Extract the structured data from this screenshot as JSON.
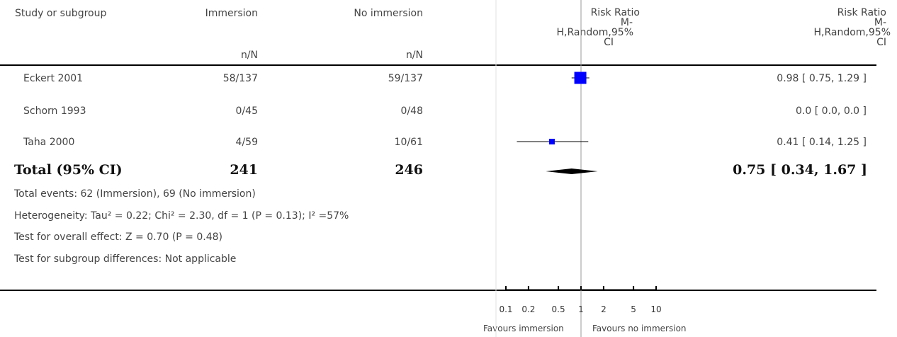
{
  "chart_data": {
    "type": "forest",
    "columns": {
      "study": "Study or subgroup",
      "group1": "Immersion",
      "group2": "No immersion",
      "group1_sub": "n/N",
      "group2_sub": "n/N",
      "rr_plot": [
        "Risk Ratio",
        "M-",
        "H,Random,95%",
        "CI"
      ],
      "rr_text": [
        "Risk Ratio",
        "M-",
        "H,Random,95%",
        "CI"
      ]
    },
    "studies": [
      {
        "name": "Eckert 2001",
        "g1": "58/137",
        "g2": "59/137",
        "rr": 0.98,
        "lo": 0.75,
        "hi": 1.29,
        "ci_text": "0.98 [ 0.75, 1.29 ]"
      },
      {
        "name": "Schorn 1993",
        "g1": "0/45",
        "g2": "0/48",
        "rr": null,
        "lo": null,
        "hi": null,
        "ci_text": "0.0 [ 0.0, 0.0 ]"
      },
      {
        "name": "Taha 2000",
        "g1": "4/59",
        "g2": "10/61",
        "rr": 0.41,
        "lo": 0.14,
        "hi": 1.25,
        "ci_text": "0.41 [ 0.14, 1.25 ]"
      }
    ],
    "total": {
      "label": "Total (95% CI)",
      "g1": "241",
      "g2": "246",
      "rr": 0.75,
      "lo": 0.34,
      "hi": 1.67,
      "ci_text": "0.75 [ 0.34, 1.67 ]"
    },
    "footnotes": [
      "Total events: 62 (Immersion), 69 (No immersion)",
      "Heterogeneity: Tau² = 0.22; Chi² = 2.30, df = 1 (P = 0.13); I² =57%",
      "Test for overall effect: Z = 0.70 (P = 0.48)",
      "Test for subgroup differences: Not applicable"
    ],
    "x_axis": {
      "scale": "log",
      "ticks": [
        0.1,
        0.2,
        0.5,
        1,
        2,
        5,
        10
      ],
      "tick_labels": [
        "0.1",
        "0.2",
        "0.5",
        "1",
        "2",
        "5",
        "10"
      ]
    },
    "favours_left": "Favours immersion",
    "favours_right": "Favours no immersion",
    "colors": {
      "point": "#0000ff",
      "diamond": "#000000",
      "lines": "#000000",
      "null_line": "#9a9a9a"
    }
  }
}
